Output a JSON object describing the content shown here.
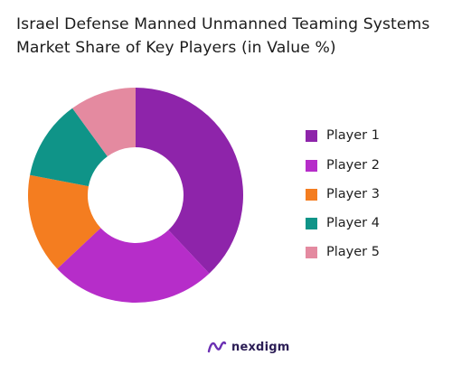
{
  "title": {
    "line1": "Israel Defense Manned Unmanned Teaming Systems",
    "line2": "Market Share of Key Players (in Value %)"
  },
  "chart_data": {
    "type": "pie",
    "variant": "donut",
    "title": "Israel Defense Manned Unmanned Teaming Systems Market Share of Key Players (in Value %)",
    "categories": [
      "Player 1",
      "Player 2",
      "Player 3",
      "Player 4",
      "Player 5"
    ],
    "values": [
      38,
      25,
      15,
      12,
      10
    ],
    "colors": [
      "#8e24aa",
      "#b62dc9",
      "#f47d20",
      "#0f9488",
      "#e48aa0"
    ],
    "legend_position": "right"
  },
  "legend": {
    "items": [
      {
        "label": "Player 1",
        "color": "#8e24aa"
      },
      {
        "label": "Player 2",
        "color": "#b62dc9"
      },
      {
        "label": "Player 3",
        "color": "#f47d20"
      },
      {
        "label": "Player 4",
        "color": "#0f9488"
      },
      {
        "label": "Player 5",
        "color": "#e48aa0"
      }
    ]
  },
  "brand": {
    "name": "nexdigm",
    "icon": "nexdigm-logo-icon",
    "color": "#2b1d55"
  }
}
